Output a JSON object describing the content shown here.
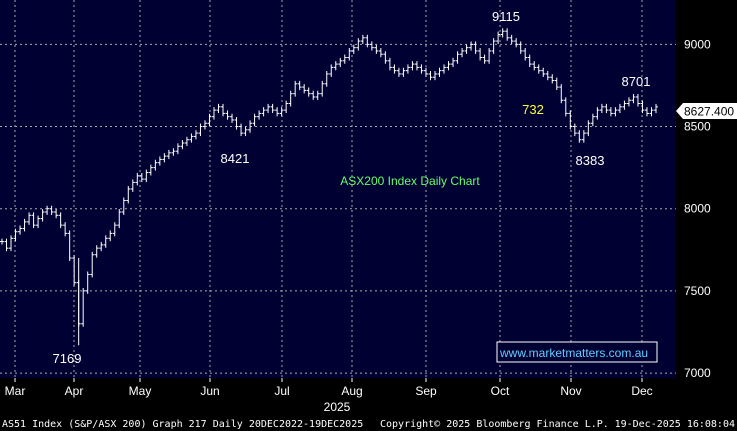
{
  "footer": {
    "left": "AS51 Index (S&P/ASX 200) Graph 217 Daily 20DEC2022-19DEC2025",
    "center": "Copyright© 2025 Bloomberg Finance L.P.",
    "right": "19-Dec-2025 16:08:04"
  },
  "colors": {
    "plot_bg": "#000033",
    "frame_bg": "#000000",
    "price": "#ffffff",
    "annotation_green": "#66ff66",
    "annotation_yellow": "#ffff33",
    "watermark": "#66ccff",
    "grid": "#aaaaaa"
  },
  "chart_data": {
    "type": "line",
    "style": "ohlc-bar",
    "title": "",
    "xlabel": "2025",
    "ylabel": "",
    "ylim": [
      6970,
      9270
    ],
    "yticks": [
      7000,
      7500,
      8000,
      8500,
      9000
    ],
    "months": [
      "Mar",
      "Apr",
      "May",
      "Jun",
      "Jul",
      "Aug",
      "Sep",
      "Oct",
      "Nov",
      "Dec"
    ],
    "year_label": "2025",
    "last_price_label": "8627.400",
    "last_price": 8627.4,
    "grid": true,
    "series": [
      {
        "values": [
          7800,
          7760,
          7820,
          7860,
          7880,
          7920,
          7960,
          7900,
          7940,
          7980,
          8000,
          7980,
          7960,
          7900,
          7850,
          7700,
          7550,
          7300,
          7500,
          7600,
          7720,
          7760,
          7780,
          7820,
          7850,
          7900,
          7980,
          8050,
          8120,
          8160,
          8200,
          8180,
          8220,
          8250,
          8280,
          8300,
          8320,
          8340,
          8350,
          8380,
          8400,
          8420,
          8440,
          8460,
          8500,
          8520,
          8560,
          8600,
          8620,
          8580,
          8560,
          8540,
          8500,
          8460,
          8480,
          8520,
          8560,
          8580,
          8600,
          8620,
          8600,
          8580,
          8600,
          8640,
          8700,
          8760,
          8740,
          8720,
          8700,
          8680,
          8700,
          8760,
          8820,
          8860,
          8880,
          8900,
          8920,
          8960,
          8980,
          9020,
          9040,
          9000,
          8980,
          8960,
          8940,
          8900,
          8860,
          8840,
          8820,
          8840,
          8860,
          8880,
          8860,
          8840,
          8820,
          8800,
          8820,
          8840,
          8860,
          8880,
          8900,
          8940,
          8960,
          8980,
          9000,
          8960,
          8920,
          8900,
          8960,
          9020,
          9060,
          9080,
          9040,
          9020,
          9000,
          8960,
          8920,
          8880,
          8860,
          8840,
          8820,
          8800,
          8780,
          8740,
          8660,
          8580,
          8500,
          8460,
          8420,
          8460,
          8520,
          8560,
          8600,
          8620,
          8600,
          8580,
          8600,
          8620,
          8640,
          8660,
          8680,
          8640,
          8600,
          8580,
          8600,
          8620
        ],
        "color": "#ffffff"
      }
    ],
    "annotations": [
      {
        "text": "9115",
        "value": 9115,
        "color": "#ffffff"
      },
      {
        "text": "8701",
        "value": 8701,
        "color": "#ffffff"
      },
      {
        "text": "732",
        "color": "#ffff33"
      },
      {
        "text": "8421",
        "value": 8421,
        "color": "#ffffff"
      },
      {
        "text": "8383",
        "value": 8383,
        "color": "#ffffff"
      },
      {
        "text": "ASX200 Index Daily Chart",
        "color": "#66ff66"
      },
      {
        "text": "7169",
        "value": 7169,
        "color": "#ffffff"
      }
    ],
    "watermark": "www.marketmatters.com.au"
  }
}
